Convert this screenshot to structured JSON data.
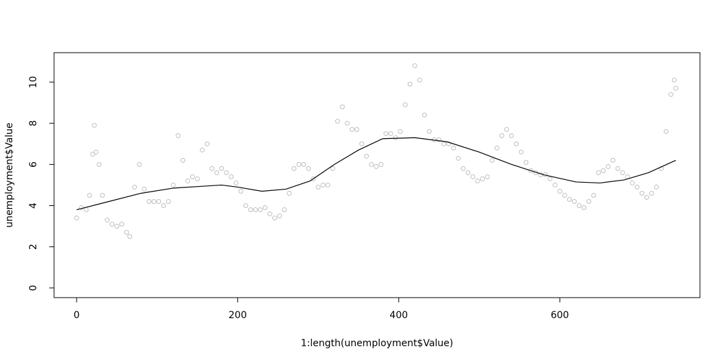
{
  "chart_data": {
    "type": "scatter",
    "xlabel": "1:length(unemployment$Value)",
    "ylabel": "unemployment$Value",
    "xlim": [
      -28,
      774
    ],
    "ylim": [
      -0.47,
      11.43
    ],
    "xticks": [
      0,
      200,
      400,
      600
    ],
    "yticks": [
      0,
      2,
      4,
      6,
      8,
      10
    ],
    "series": [
      {
        "mark": "circle",
        "color": "#bebebe",
        "x": [
          0,
          6,
          12,
          16,
          20,
          22,
          24,
          28,
          32,
          38,
          44,
          50,
          56,
          62,
          66,
          72,
          78,
          84,
          90,
          96,
          102,
          108,
          114,
          120,
          126,
          132,
          138,
          144,
          150,
          156,
          162,
          168,
          174,
          180,
          186,
          192,
          198,
          204,
          210,
          216,
          222,
          228,
          234,
          240,
          246,
          252,
          258,
          264,
          270,
          276,
          282,
          288,
          294,
          300,
          306,
          312,
          318,
          324,
          330,
          336,
          342,
          348,
          354,
          360,
          366,
          372,
          378,
          384,
          390,
          396,
          402,
          408,
          414,
          420,
          426,
          432,
          438,
          444,
          450,
          456,
          462,
          468,
          474,
          480,
          486,
          492,
          498,
          504,
          510,
          516,
          522,
          528,
          534,
          540,
          546,
          552,
          558,
          564,
          570,
          576,
          582,
          588,
          594,
          600,
          606,
          612,
          618,
          624,
          630,
          636,
          642,
          648,
          654,
          660,
          666,
          672,
          678,
          684,
          690,
          696,
          702,
          708,
          714,
          720,
          726,
          732,
          738,
          742,
          744
        ],
        "values": [
          3.4,
          3.9,
          3.8,
          4.5,
          6.5,
          7.9,
          6.6,
          6.0,
          4.5,
          3.3,
          3.1,
          3.0,
          3.1,
          2.7,
          2.5,
          4.9,
          6.0,
          4.8,
          4.2,
          4.2,
          4.2,
          4.0,
          4.2,
          5.0,
          7.4,
          6.2,
          5.2,
          5.4,
          5.3,
          6.7,
          7.0,
          5.8,
          5.6,
          5.8,
          5.6,
          5.4,
          5.1,
          4.7,
          4.0,
          3.8,
          3.8,
          3.8,
          3.9,
          3.6,
          3.4,
          3.5,
          3.8,
          4.6,
          5.8,
          6.0,
          6.0,
          5.8,
          5.3,
          4.9,
          5.0,
          5.0,
          5.8,
          8.1,
          8.8,
          8.0,
          7.7,
          7.7,
          7.0,
          6.4,
          6.0,
          5.9,
          6.0,
          7.5,
          7.5,
          7.3,
          7.6,
          8.9,
          9.9,
          10.8,
          10.1,
          8.4,
          7.6,
          7.2,
          7.2,
          7.0,
          7.0,
          6.8,
          6.3,
          5.8,
          5.6,
          5.4,
          5.2,
          5.3,
          5.4,
          6.2,
          6.8,
          7.4,
          7.7,
          7.4,
          7.0,
          6.6,
          6.1,
          5.7,
          5.6,
          5.5,
          5.5,
          5.3,
          5.0,
          4.7,
          4.5,
          4.3,
          4.2,
          4.0,
          3.9,
          4.2,
          4.5,
          5.6,
          5.7,
          5.9,
          6.2,
          5.8,
          5.6,
          5.4,
          5.1,
          4.9,
          4.6,
          4.4,
          4.6,
          4.9,
          5.8,
          7.6,
          9.4,
          10.1,
          9.7
        ]
      },
      {
        "mark": "line",
        "color": "#000000",
        "x": [
          0,
          40,
          80,
          120,
          160,
          180,
          200,
          230,
          260,
          290,
          320,
          350,
          380,
          420,
          460,
          500,
          540,
          580,
          620,
          650,
          680,
          710,
          744
        ],
        "values": [
          3.8,
          4.2,
          4.6,
          4.85,
          4.95,
          5.0,
          4.9,
          4.7,
          4.8,
          5.2,
          6.0,
          6.7,
          7.25,
          7.3,
          7.1,
          6.6,
          6.0,
          5.5,
          5.15,
          5.1,
          5.25,
          5.6,
          6.2
        ]
      }
    ]
  }
}
